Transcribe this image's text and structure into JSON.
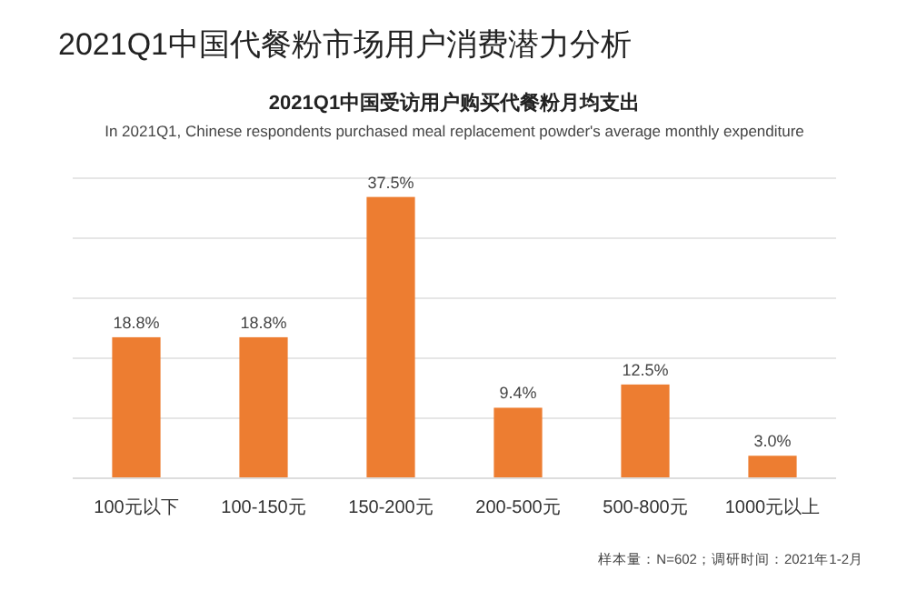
{
  "chart_data": {
    "type": "bar",
    "title": "2021Q1中国代餐粉市场用户消费潜力分析",
    "subtitle": "2021Q1中国受访用户购买代餐粉月均支出",
    "annotations": [
      "In 2021Q1, Chinese respondents purchased meal replacement powder's average monthly expenditure",
      "样本量：N=602；调研时间：2021年1-2月"
    ],
    "categories": [
      "100元以下",
      "100-150元",
      "150-200元",
      "200-500元",
      "500-800元",
      "1000元以上"
    ],
    "values": [
      18.8,
      18.8,
      37.5,
      9.4,
      12.5,
      3.0
    ],
    "value_labels": [
      "18.8%",
      "18.8%",
      "37.5%",
      "9.4%",
      "12.5%",
      "3.0%"
    ],
    "color": "#ed7d31",
    "ylim": [
      0,
      40
    ],
    "yticks": [
      {
        "value": 0,
        "label": null
      },
      {
        "value": 8,
        "label": null
      },
      {
        "value": 16,
        "label": null
      },
      {
        "value": 24,
        "label": null
      },
      {
        "value": 32,
        "label": null
      },
      {
        "value": 40,
        "label": null
      }
    ],
    "grid": "y",
    "tick_labels": "x"
  }
}
